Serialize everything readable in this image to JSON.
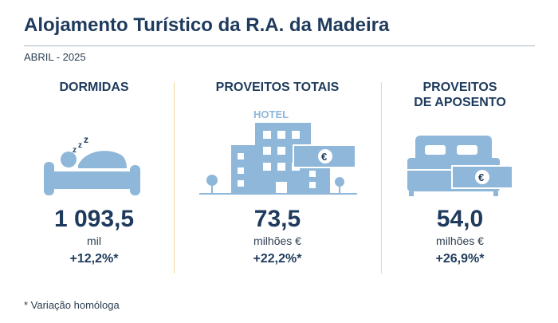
{
  "header": {
    "title": "Alojamento Turístico da R.A. da Madeira",
    "period": "ABRIL - 2025"
  },
  "stats": [
    {
      "label": "DORMIDAS",
      "value": "1 093,5",
      "unit": "mil",
      "change": "+12,2%*",
      "icon": "sleeping-person-icon"
    },
    {
      "label": "PROVEITOS TOTAIS",
      "value": "73,5",
      "unit": "milhões €",
      "change": "+22,2%*",
      "icon": "hotel-building-icon",
      "icon_text": "HOTEL"
    },
    {
      "label_lines": [
        "PROVEITOS",
        "DE APOSENTO"
      ],
      "value": "54,0",
      "unit": "milhões €",
      "change": "+26,9%*",
      "icon": "double-bed-icon"
    }
  ],
  "footnote": "* Variação homóloga",
  "colors": {
    "accent": "#8fb7d9",
    "text": "#1e3a5c",
    "separator": "#f2d79a"
  }
}
